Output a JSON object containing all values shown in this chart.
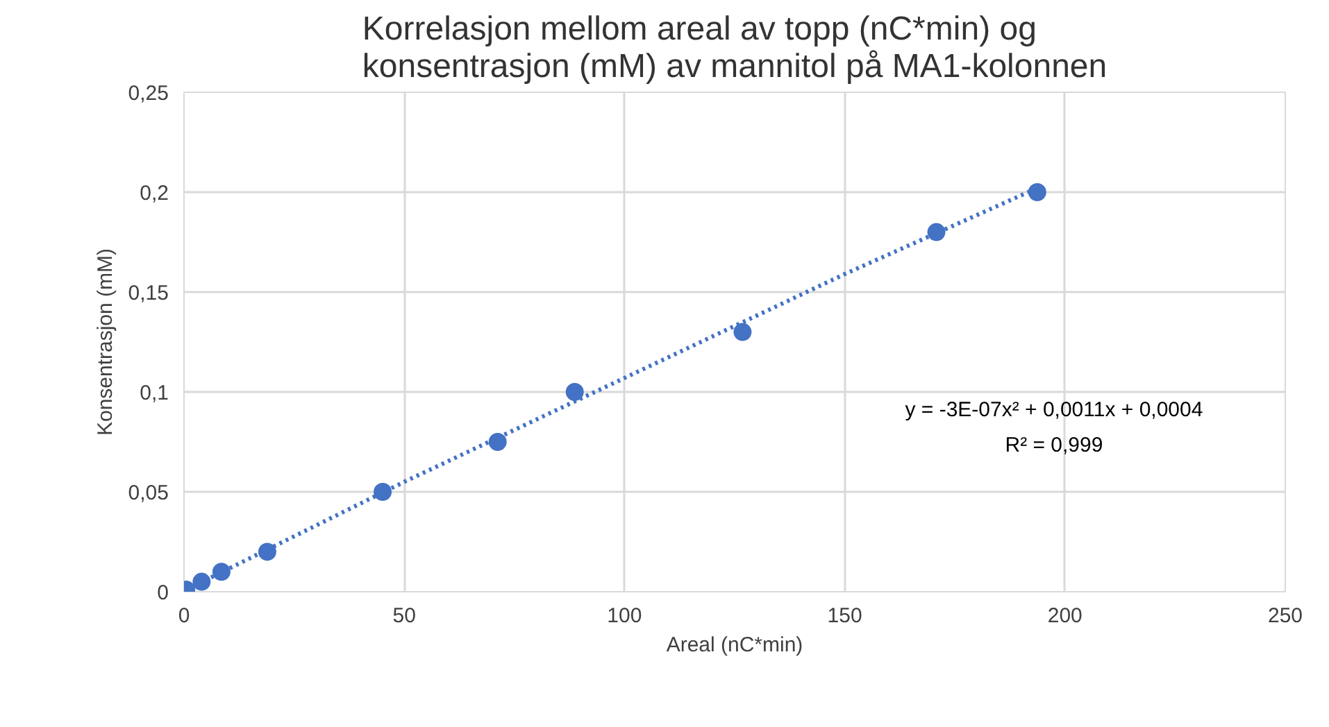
{
  "chart_data": {
    "type": "scatter",
    "title": "Korrelasjon mellom areal av topp (nC*min) og\nkonsentrasjon (mM) av mannitol på MA1-kolonnen",
    "xlabel": "Areal (nC*min)",
    "ylabel": "Konsentrasjon (mM)",
    "x": [
      0.5,
      4.0,
      8.5,
      18.9,
      45.1,
      71.2,
      88.7,
      126.8,
      170.8,
      193.7
    ],
    "series": [
      {
        "type": "scatter",
        "color": "#4472c4",
        "marker": "circle",
        "values": [
          0.001,
          0.005,
          0.01,
          0.02,
          0.05,
          0.075,
          0.1,
          0.13,
          0.18,
          0.2
        ]
      },
      {
        "type": "line",
        "color": "#4472c4",
        "line_style": "dotted",
        "x": [
          0.5,
          50,
          100,
          150,
          193.7
        ],
        "values": [
          0.001,
          0.055,
          0.107,
          0.159,
          0.202
        ]
      }
    ],
    "xlim": [
      0,
      250
    ],
    "xticks": [
      0,
      50,
      100,
      150,
      200,
      250
    ],
    "ylim": [
      0,
      0.25
    ],
    "yticks": [
      0,
      {
        "value": 0.05,
        "label": "0,05"
      },
      {
        "value": 0.1,
        "label": "0,1"
      },
      {
        "value": 0.15,
        "label": "0,15"
      },
      {
        "value": 0.2,
        "label": "0,2"
      },
      {
        "value": 0.25,
        "label": "0,25"
      }
    ],
    "annotations": [
      "y = -3E-07x² + 0,0011x + 0,0004",
      "R² = 0,999"
    ],
    "grid": true
  }
}
